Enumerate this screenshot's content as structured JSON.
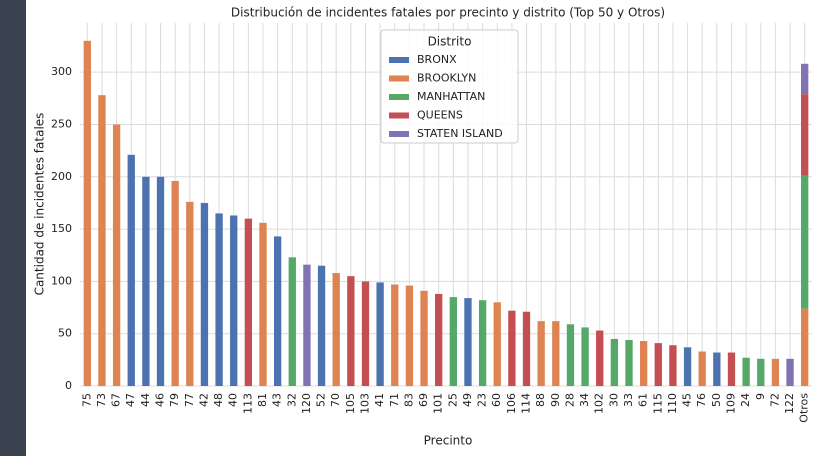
{
  "chart_data": {
    "type": "stacked-bar",
    "title": "Distribución de incidentes fatales por precinto y distrito (Top 50 y Otros)",
    "x_label": "Precinto",
    "y_label": "Cantidad de incidentes fatales",
    "legend_title": "Distrito",
    "legend": "upper center",
    "grid": true,
    "ylim": [
      0,
      347
    ],
    "yticks": [
      0,
      50,
      100,
      150,
      200,
      250,
      300
    ],
    "categories": [
      "75",
      "73",
      "67",
      "47",
      "44",
      "46",
      "79",
      "77",
      "42",
      "48",
      "40",
      "113",
      "81",
      "43",
      "32",
      "120",
      "52",
      "70",
      "105",
      "103",
      "41",
      "71",
      "83",
      "69",
      "101",
      "25",
      "49",
      "23",
      "60",
      "106",
      "114",
      "88",
      "90",
      "28",
      "34",
      "102",
      "30",
      "33",
      "61",
      "115",
      "110",
      "45",
      "76",
      "50",
      "109",
      "24",
      "9",
      "72",
      "122",
      "Otros"
    ],
    "series": [
      {
        "name": "BRONX",
        "color": "#4c72b0",
        "values": [
          null,
          null,
          null,
          221,
          200,
          200,
          null,
          null,
          175,
          165,
          163,
          null,
          null,
          143,
          null,
          null,
          115,
          null,
          null,
          null,
          99,
          null,
          null,
          null,
          null,
          null,
          84,
          null,
          null,
          null,
          null,
          null,
          null,
          null,
          null,
          null,
          null,
          null,
          null,
          null,
          null,
          37,
          null,
          32,
          null,
          null,
          null,
          null,
          null,
          null
        ]
      },
      {
        "name": "BROOKLYN",
        "color": "#dd8452",
        "values": [
          330,
          278,
          250,
          null,
          null,
          null,
          196,
          176,
          null,
          null,
          null,
          null,
          156,
          null,
          null,
          null,
          null,
          108,
          null,
          null,
          null,
          97,
          96,
          91,
          null,
          null,
          null,
          null,
          80,
          null,
          null,
          62,
          62,
          null,
          null,
          null,
          null,
          null,
          43,
          null,
          null,
          null,
          33,
          null,
          null,
          null,
          null,
          26,
          null,
          74
        ]
      },
      {
        "name": "MANHATTAN",
        "color": "#55a868",
        "values": [
          null,
          null,
          null,
          null,
          null,
          null,
          null,
          null,
          null,
          null,
          null,
          null,
          null,
          null,
          123,
          null,
          null,
          null,
          null,
          null,
          null,
          null,
          null,
          null,
          null,
          85,
          null,
          82,
          null,
          null,
          null,
          null,
          null,
          59,
          56,
          null,
          45,
          44,
          null,
          null,
          null,
          null,
          null,
          null,
          null,
          27,
          26,
          null,
          null,
          127
        ]
      },
      {
        "name": "QUEENS",
        "color": "#c44e52",
        "values": [
          null,
          null,
          null,
          null,
          null,
          null,
          null,
          null,
          null,
          null,
          null,
          160,
          null,
          null,
          null,
          null,
          null,
          null,
          105,
          100,
          null,
          null,
          null,
          null,
          88,
          null,
          null,
          null,
          null,
          72,
          71,
          null,
          null,
          null,
          null,
          53,
          null,
          null,
          null,
          41,
          39,
          null,
          null,
          null,
          32,
          null,
          null,
          null,
          null,
          78
        ]
      },
      {
        "name": "STATEN ISLAND",
        "color": "#8172b3",
        "values": [
          null,
          null,
          null,
          null,
          null,
          null,
          null,
          null,
          null,
          null,
          null,
          null,
          null,
          null,
          null,
          116,
          null,
          null,
          null,
          null,
          null,
          null,
          null,
          null,
          null,
          null,
          null,
          null,
          null,
          null,
          null,
          null,
          null,
          null,
          null,
          null,
          null,
          null,
          null,
          null,
          null,
          null,
          null,
          null,
          null,
          null,
          null,
          null,
          26,
          29
        ]
      }
    ]
  }
}
